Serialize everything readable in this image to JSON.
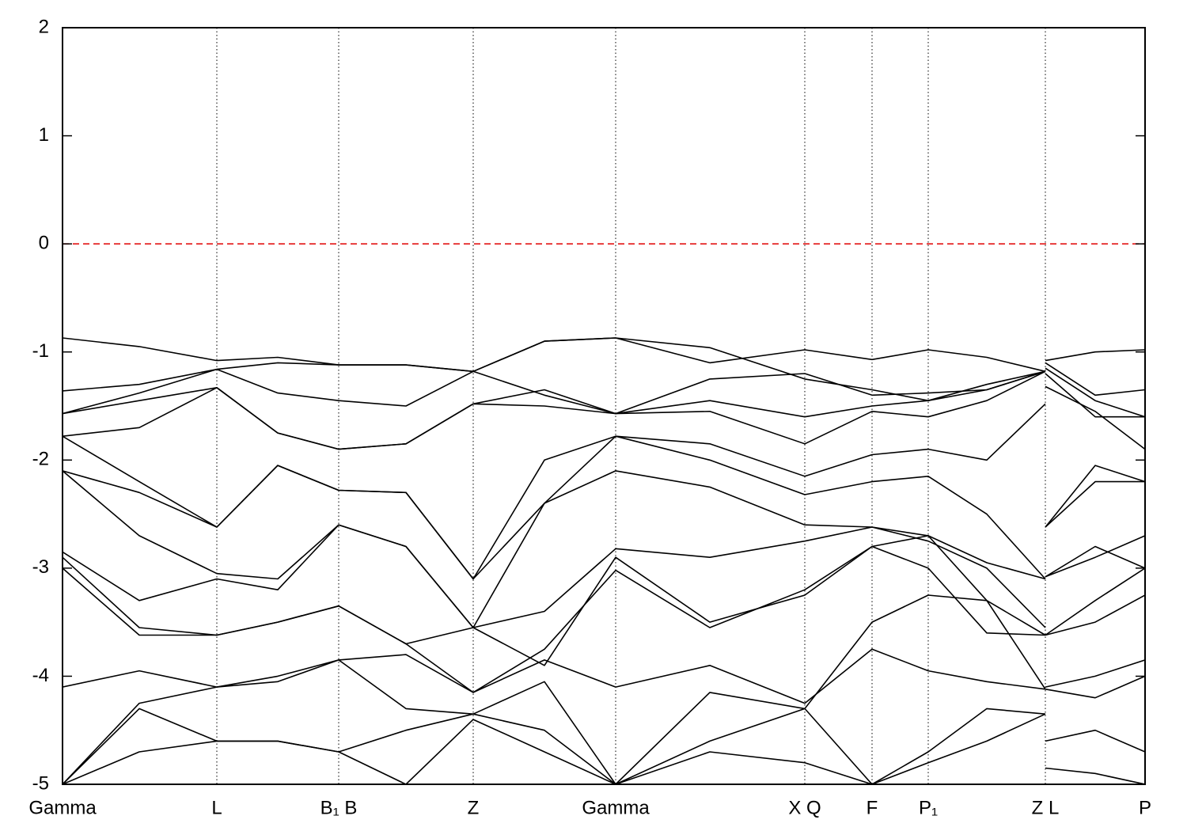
{
  "chart_data": {
    "type": "line",
    "xlim": [
      0,
      13.68
    ],
    "ylim": [
      -5,
      2
    ],
    "yticks": [
      -5,
      -4,
      -3,
      -2,
      -1,
      0,
      1,
      2
    ],
    "xticks": [
      {
        "value": 0,
        "label": "Gamma"
      },
      {
        "value": 1.95,
        "label": "L"
      },
      {
        "value": 3.49,
        "label": "B₁ B"
      },
      {
        "value": 5.19,
        "label": "Z"
      },
      {
        "value": 6.99,
        "label": "Gamma"
      },
      {
        "value": 9.38,
        "label": "X Q"
      },
      {
        "value": 10.23,
        "label": "F"
      },
      {
        "value": 10.94,
        "label": "P₁"
      },
      {
        "value": 12.42,
        "label": "Z L"
      },
      {
        "value": 13.68,
        "label": "P"
      }
    ],
    "grid": true,
    "fermi_level": {
      "value": 0,
      "color": "#e00000"
    },
    "x": [
      0,
      0.97,
      1.95,
      2.72,
      3.49,
      4.34,
      5.19,
      6.09,
      6.99,
      8.18,
      9.38,
      10.23,
      10.94,
      11.68,
      12.42,
      12.42,
      12.42,
      13.05,
      13.68
    ],
    "series": [
      {
        "color": "#000000",
        "values": [
          -0.87,
          -0.95,
          -1.08,
          -1.05,
          -1.12,
          -1.12,
          -1.18,
          -0.9,
          -0.87,
          -1.1,
          -0.98,
          -1.07,
          -0.98,
          -1.05,
          -1.18,
          null,
          -1.08,
          -1.0,
          -0.98
        ]
      },
      {
        "color": "#000000",
        "values": [
          -1.36,
          -1.3,
          -1.16,
          -1.38,
          -1.45,
          -1.5,
          -1.18,
          -0.9,
          -0.87,
          -0.96,
          -1.25,
          -1.35,
          -1.45,
          -1.3,
          -1.18,
          null,
          -1.1,
          -1.4,
          -1.35
        ]
      },
      {
        "color": "#000000",
        "values": [
          -1.57,
          -1.38,
          -1.16,
          -1.1,
          -1.12,
          -1.12,
          -1.18,
          -1.4,
          -1.57,
          -1.25,
          -1.2,
          -1.4,
          -1.38,
          -1.35,
          -1.18,
          null,
          -1.15,
          -1.45,
          -1.6
        ]
      },
      {
        "color": "#000000",
        "values": [
          -1.57,
          -1.45,
          -1.33,
          -1.75,
          -1.9,
          -1.85,
          -1.48,
          -1.35,
          -1.57,
          -1.45,
          -1.6,
          -1.5,
          -1.45,
          -1.35,
          -1.18,
          null,
          -1.32,
          -1.55,
          -1.9
        ]
      },
      {
        "color": "#000000",
        "values": [
          -1.78,
          -1.7,
          -1.33,
          -1.75,
          -1.9,
          -1.85,
          -1.48,
          -1.5,
          -1.57,
          -1.55,
          -1.85,
          -1.55,
          -1.6,
          -1.45,
          -1.18,
          null,
          -1.2,
          -1.6,
          -1.6
        ]
      },
      {
        "color": "#000000",
        "values": [
          -1.78,
          -2.2,
          -2.62,
          -2.05,
          -2.28,
          -2.3,
          -3.1,
          -2.4,
          -1.78,
          -1.85,
          -2.15,
          -1.95,
          -1.9,
          -2.0,
          -1.48,
          null,
          -2.62,
          -2.05,
          -2.2
        ]
      },
      {
        "color": "#000000",
        "values": [
          -2.1,
          -2.3,
          -2.62,
          -2.05,
          -2.28,
          -2.3,
          -3.1,
          -2.0,
          -1.78,
          -2.0,
          -2.32,
          -2.2,
          -2.15,
          -2.5,
          -3.1,
          null,
          -2.62,
          -2.2,
          -2.2
        ]
      },
      {
        "color": "#000000",
        "values": [
          -2.1,
          -2.7,
          -3.05,
          -3.1,
          -2.6,
          -2.8,
          -3.55,
          -2.4,
          -2.1,
          -2.25,
          -2.6,
          -2.62,
          -2.7,
          -2.95,
          -3.1,
          null,
          -3.08,
          -2.9,
          -2.7
        ]
      },
      {
        "color": "#000000",
        "values": [
          -2.85,
          -3.3,
          -3.1,
          -3.2,
          -2.6,
          -2.8,
          -3.55,
          -3.4,
          -2.82,
          -2.9,
          -2.75,
          -2.62,
          -2.75,
          -3.0,
          -3.55,
          null,
          -3.08,
          -2.8,
          -3.0
        ]
      },
      {
        "color": "#000000",
        "values": [
          -2.9,
          -3.55,
          -3.62,
          -3.5,
          -3.35,
          -3.7,
          -3.55,
          -3.9,
          -2.9,
          -3.5,
          -3.25,
          -2.8,
          -2.7,
          -3.3,
          -3.62,
          null,
          -3.62,
          -3.3,
          -3.0
        ]
      },
      {
        "color": "#000000",
        "values": [
          -3.0,
          -3.62,
          -3.62,
          -3.5,
          -3.35,
          -3.7,
          -4.15,
          -3.75,
          -3.02,
          -3.55,
          -3.2,
          -2.8,
          -3.0,
          -3.6,
          -3.62,
          null,
          -3.62,
          -3.5,
          -3.25
        ]
      },
      {
        "color": "#000000",
        "values": [
          -4.1,
          -3.95,
          -4.1,
          -4.0,
          -3.85,
          -3.8,
          -4.15,
          -3.85,
          -4.1,
          -3.9,
          -4.25,
          -3.75,
          -3.95,
          -4.05,
          -4.12,
          null,
          -4.1,
          -4.0,
          -3.85
        ]
      },
      {
        "color": "#000000",
        "values": [
          -5.0,
          -4.25,
          -4.1,
          -4.05,
          -3.85,
          -4.3,
          -4.35,
          -4.05,
          -5.0,
          -4.15,
          -4.3,
          -3.5,
          -3.25,
          -3.3,
          -4.12,
          null,
          -4.12,
          -4.2,
          -4.0
        ]
      },
      {
        "color": "#000000",
        "values": [
          -5.0,
          -4.3,
          -4.6,
          -4.6,
          -4.7,
          -4.5,
          -4.35,
          -4.5,
          -5.0,
          -4.6,
          -4.3,
          -5.0,
          -4.7,
          -4.3,
          -4.35,
          null,
          -4.6,
          -4.5,
          -4.7
        ]
      },
      {
        "color": "#000000",
        "values": [
          -5.0,
          -4.7,
          -4.6,
          -4.6,
          -4.7,
          -5.0,
          -4.4,
          -4.7,
          -5.0,
          -4.7,
          -4.8,
          -5.0,
          -4.8,
          -4.6,
          -4.35,
          null,
          -4.85,
          -4.9,
          -5.0
        ]
      }
    ]
  }
}
